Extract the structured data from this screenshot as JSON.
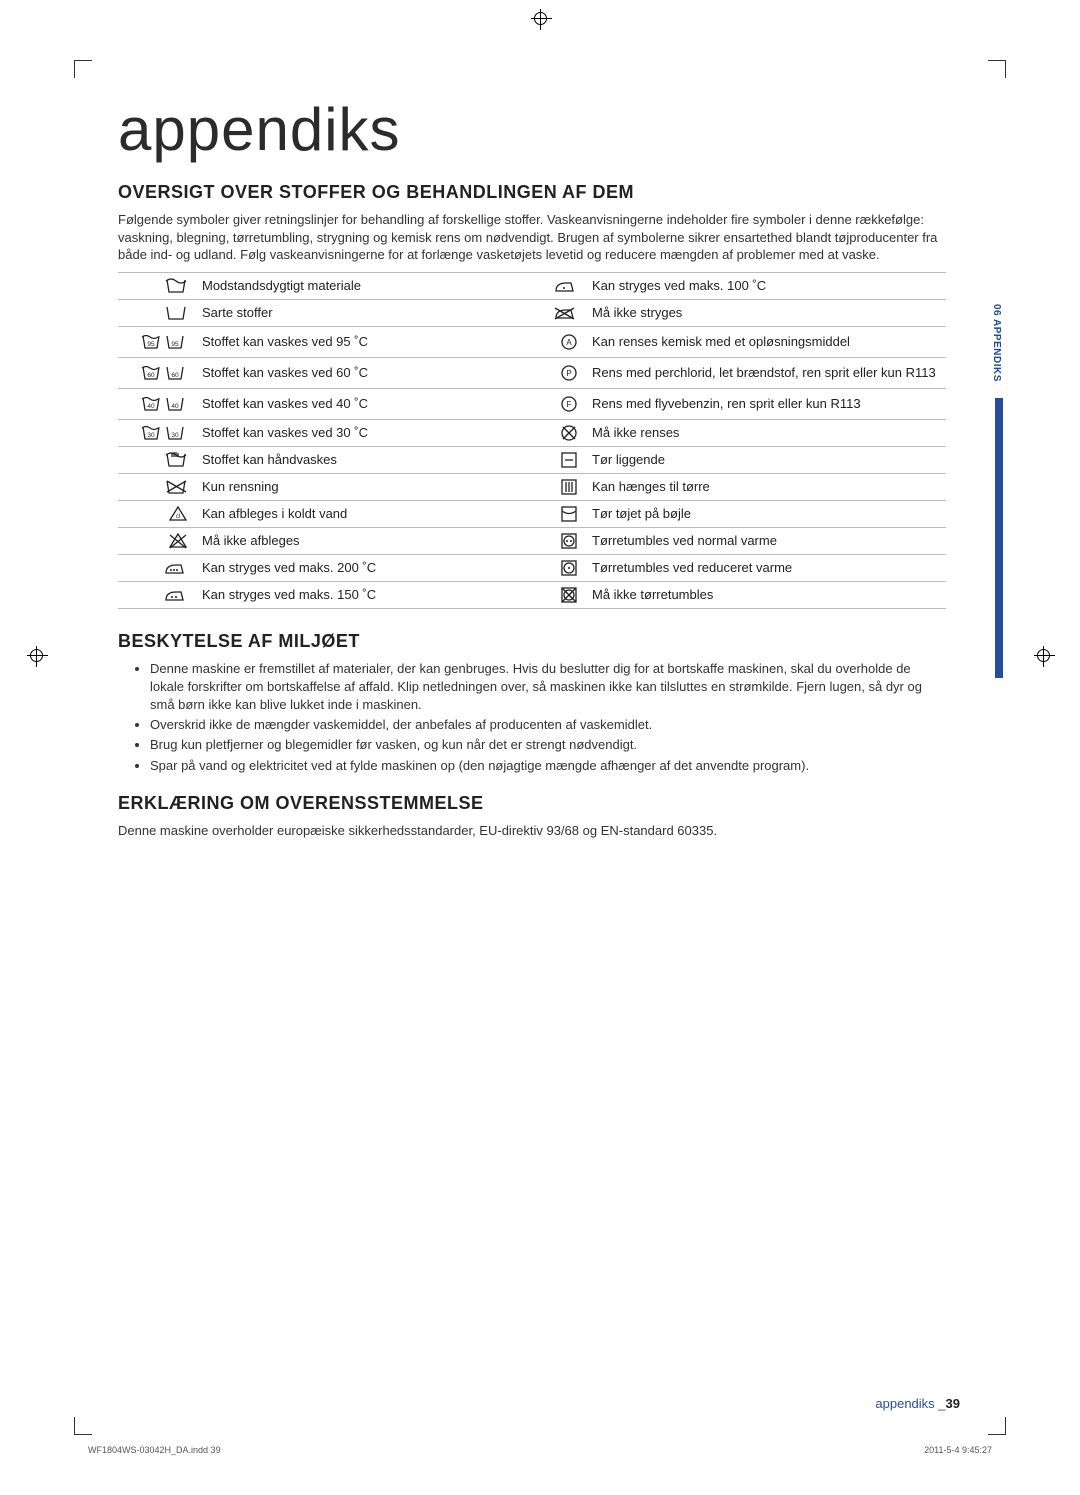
{
  "page": {
    "title": "appendiks",
    "section_tab": "06  APPENDIKS",
    "footer_section": "appendiks _",
    "footer_page": "39",
    "footer_file": "WF1804WS-03042H_DA.indd   39",
    "footer_timestamp": "2011-5-4   9:45:27"
  },
  "section1": {
    "heading": "OVERSIGT OVER STOFFER OG BEHANDLINGEN AF DEM",
    "intro": "Følgende symboler giver retningslinjer for behandling af forskellige stoffer. Vaskeanvisningerne indeholder fire symboler i denne rækkefølge: vaskning, blegning, tørretumbling, strygning og kemisk rens om nødvendigt. Brugen af symbolerne sikrer ensartethed blandt tøjproducenter fra både ind- og udland. Følg vaskeanvisningerne for at forlænge vasketøjets levetid og reducere mængden af problemer med at vaske.",
    "chart": {
      "columns": [
        "icon_left",
        "label_left",
        "icon_right",
        "label_right"
      ],
      "row_border_color": "#bbbbbb",
      "font_size": 13,
      "rows": [
        {
          "l_icon": "tub-wave",
          "l": "Modstandsdygtigt materiale",
          "r_icon": "iron-1dot",
          "r": "Kan stryges ved maks. 100 ˚C"
        },
        {
          "l_icon": "tub-plain",
          "l": "Sarte stoffer",
          "r_icon": "iron-cross",
          "r": "Må ikke stryges"
        },
        {
          "l_icon": "tub-95",
          "l": "Stoffet kan vaskes ved 95 ˚C",
          "r_icon": "circle-A",
          "r": "Kan renses kemisk med et opløsningsmiddel",
          "tall": true
        },
        {
          "l_icon": "tub-60",
          "l": "Stoffet kan vaskes ved 60 ˚C",
          "r_icon": "circle-P",
          "r": "Rens med perchlorid, let brændstof, ren sprit eller kun R113",
          "tall": true
        },
        {
          "l_icon": "tub-40",
          "l": "Stoffet kan vaskes ved 40 ˚C",
          "r_icon": "circle-F",
          "r": "Rens med flyvebenzin, ren sprit eller kun R113",
          "tall": true
        },
        {
          "l_icon": "tub-30",
          "l": "Stoffet kan vaskes ved 30 ˚C",
          "r_icon": "circle-cross",
          "r": "Må ikke renses"
        },
        {
          "l_icon": "tub-hand",
          "l": "Stoffet kan håndvaskes",
          "r_icon": "square-dash",
          "r": "Tør liggende"
        },
        {
          "l_icon": "tub-cross",
          "l": "Kun rensning",
          "r_icon": "square-bars",
          "r": "Kan hænges til tørre"
        },
        {
          "l_icon": "triangle",
          "l": "Kan afbleges i koldt vand",
          "r_icon": "square-arc",
          "r": "Tør tøjet på bøjle"
        },
        {
          "l_icon": "triangle-cross",
          "l": "Må ikke afbleges",
          "r_icon": "sq-circle-2dot",
          "r": "Tørretumbles ved normal varme"
        },
        {
          "l_icon": "iron-3dot",
          "l": "Kan stryges ved maks. 200 ˚C",
          "r_icon": "sq-circle-1dot",
          "r": "Tørretumbles ved reduceret varme"
        },
        {
          "l_icon": "iron-2dot",
          "l": "Kan stryges ved maks. 150 ˚C",
          "r_icon": "sq-circle-cross",
          "r": "Må ikke tørretumbles"
        }
      ]
    }
  },
  "section2": {
    "heading": "BESKYTELSE AF MILJØET",
    "bullets": [
      "Denne maskine er fremstillet af materialer, der kan genbruges. Hvis du beslutter dig for at bortskaffe maskinen, skal du overholde de lokale forskrifter om bortskaffelse af affald. Klip netledningen over, så maskinen ikke kan tilsluttes en strømkilde. Fjern lugen, så dyr og små børn ikke kan blive lukket inde i maskinen.",
      "Overskrid ikke de mængder vaskemiddel, der anbefales af producenten af vaskemidlet.",
      "Brug kun pletfjerner og blegemidler før vasken, og kun når det er strengt nødvendigt.",
      "Spar på vand og elektricitet ved at fylde maskinen op (den nøjagtige mængde afhænger af det anvendte program)."
    ]
  },
  "section3": {
    "heading": "ERKLÆRING OM OVERENSSTEMMELSE",
    "text": "Denne maskine overholder europæiske sikkerhedsstandarder, EU-direktiv 93/68 og EN-standard 60335."
  },
  "colors": {
    "text": "#333333",
    "heading": "#222222",
    "accent": "#2a4d9b",
    "border": "#bbbbbb",
    "background": "#ffffff"
  }
}
